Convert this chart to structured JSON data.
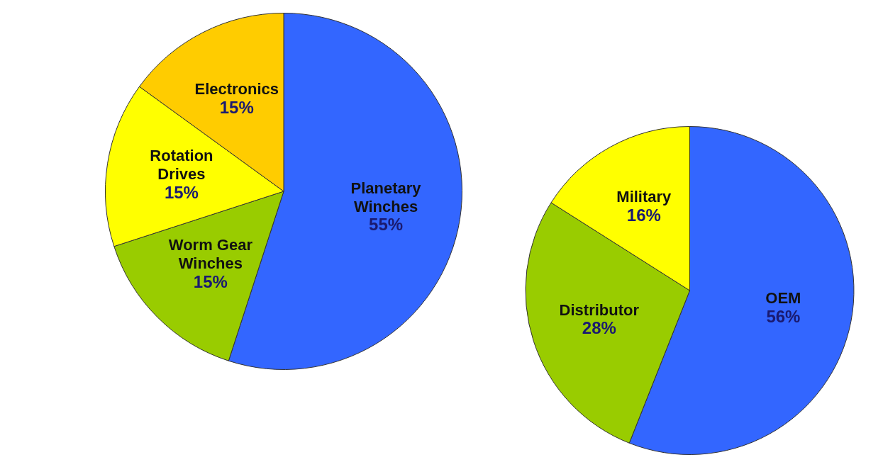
{
  "chart_data": [
    {
      "type": "pie",
      "categories": [
        "Planetary Winches",
        "Worm Gear Winches",
        "Rotation Drives",
        "Electronics"
      ],
      "values": [
        55,
        15,
        15,
        15
      ],
      "value_labels": [
        "55%",
        "15%",
        "15%",
        "15%"
      ],
      "colors": [
        "#3366ff",
        "#99cc00",
        "#ffff00",
        "#ffcc00"
      ],
      "legend": false
    },
    {
      "type": "pie",
      "categories": [
        "OEM",
        "Distributor",
        "Military"
      ],
      "values": [
        56,
        28,
        16
      ],
      "value_labels": [
        "56%",
        "28%",
        "16%"
      ],
      "colors": [
        "#3366ff",
        "#99cc00",
        "#ffff00"
      ],
      "legend": false
    }
  ]
}
